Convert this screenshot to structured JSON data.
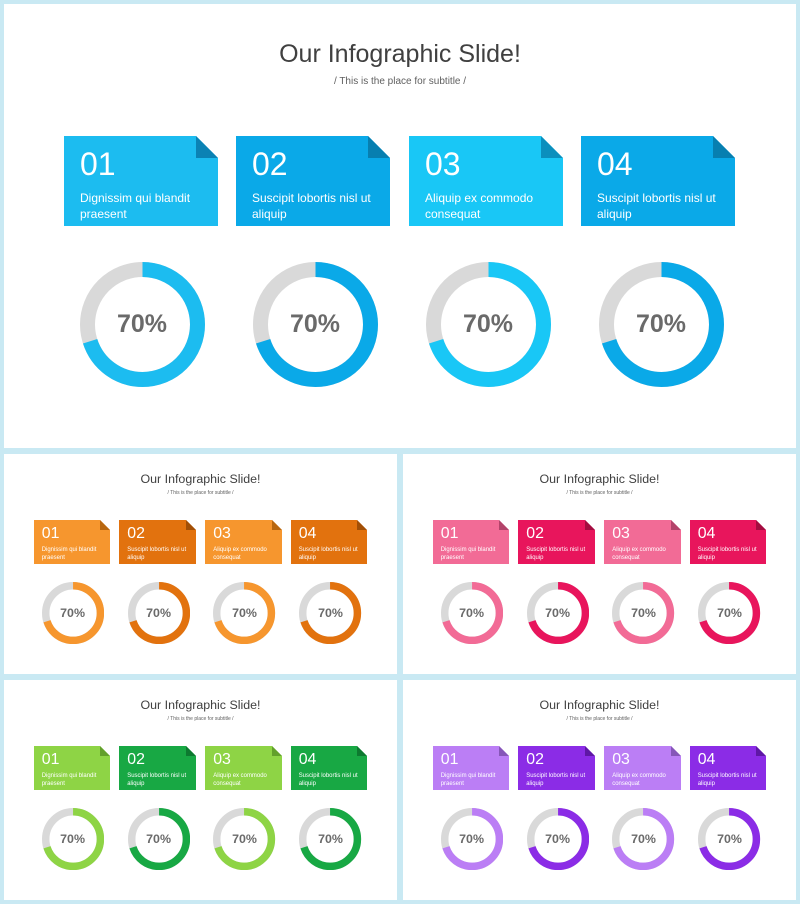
{
  "slide_title": "Our Infographic Slide!",
  "slide_subtitle": "/ This is the place for subtitle /",
  "items": [
    {
      "number": "01",
      "text": "Dignissim qui blandit praesent",
      "percent_label": "70%",
      "percent": 70
    },
    {
      "number": "02",
      "text": "Suscipit lobortis nisl ut aliquip",
      "percent_label": "70%",
      "percent": 70
    },
    {
      "number": "03",
      "text": "Aliquip ex commodo consequat",
      "percent_label": "70%",
      "percent": 70
    },
    {
      "number": "04",
      "text": "Suscipit lobortis nisl ut aliquip",
      "percent_label": "70%",
      "percent": 70
    }
  ],
  "themes": [
    {
      "name": "blue",
      "colors": [
        "#1cbcf0",
        "#0aa9e8",
        "#19c7f6",
        "#0aa9e8"
      ],
      "fold_colors": [
        "#0b82b4",
        "#077fb0",
        "#0b8fbd",
        "#077fb0"
      ]
    },
    {
      "name": "orange",
      "colors": [
        "#f6962e",
        "#e2720e",
        "#f6962e",
        "#e2720e"
      ],
      "fold_colors": [
        "#b86710",
        "#a24f06",
        "#b86710",
        "#a24f06"
      ]
    },
    {
      "name": "pink",
      "colors": [
        "#f26b96",
        "#e8155c",
        "#f26b96",
        "#e8155c"
      ],
      "fold_colors": [
        "#b3436a",
        "#a30d40",
        "#b3436a",
        "#a30d40"
      ]
    },
    {
      "name": "green",
      "colors": [
        "#8ed445",
        "#18a844",
        "#8ed445",
        "#18a844"
      ],
      "fold_colors": [
        "#62a02b",
        "#0d7a30",
        "#62a02b",
        "#0d7a30"
      ]
    },
    {
      "name": "purple",
      "colors": [
        "#bb7ef5",
        "#8b2ce6",
        "#bb7ef5",
        "#8b2ce6"
      ],
      "fold_colors": [
        "#8656b8",
        "#5f17a6",
        "#8656b8",
        "#5f17a6"
      ]
    }
  ],
  "ring_track_color": "#d9d9d9"
}
